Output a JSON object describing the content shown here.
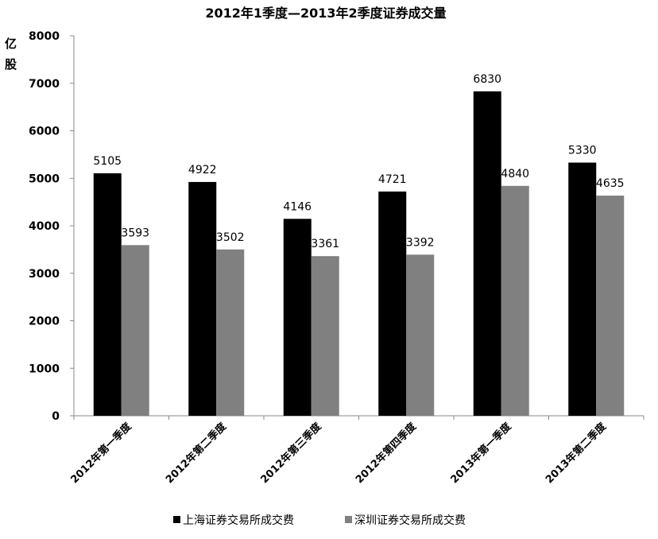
{
  "chart_data": {
    "type": "bar",
    "title": "2012年1季度—2013年2季度证券成交量",
    "ylabel": "亿股",
    "xlabel": "",
    "ylim": [
      0,
      8000
    ],
    "yticks": [
      "0",
      "1000",
      "2000",
      "3000",
      "4000",
      "5000",
      "6000",
      "7000",
      "8000"
    ],
    "categories": [
      "2012年第一季度",
      "2012年第二季度",
      "2012年第三季度",
      "2012年第四季度",
      "2013年第一季度",
      "2013年第二季度"
    ],
    "series": [
      {
        "name": "上海证券交易所成交费",
        "color": "#000000",
        "values": [
          5105,
          4922,
          4146,
          4721,
          6830,
          5330
        ]
      },
      {
        "name": "深圳证券交易所成交费",
        "color": "#808080",
        "values": [
          3593,
          3502,
          3361,
          3392,
          4840,
          4635
        ]
      }
    ],
    "grid": false,
    "legend": "bottom"
  }
}
